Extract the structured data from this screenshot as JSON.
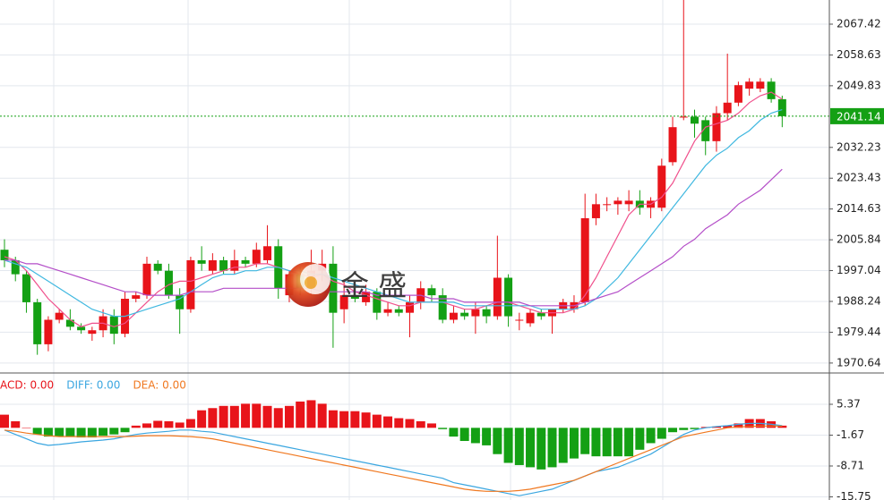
{
  "chart_data": {
    "type": "candlestick",
    "up_color": "#e8141a",
    "down_color": "#14a014",
    "ylim": [
      1968.31,
      2074.32
    ],
    "yticks": [
      2067.42,
      2058.63,
      2049.83,
      2032.23,
      2023.43,
      2014.63,
      2005.84,
      1997.04,
      1988.24,
      1979.44,
      1970.64
    ],
    "last_price": 2041.14,
    "last_price_color": "#14a014",
    "logo": "金 盛",
    "candles": {
      "open": [
        2003,
        2000,
        1996,
        1988,
        1976,
        1983,
        1983,
        1981,
        1979,
        1980,
        1984,
        1979,
        1989,
        1990,
        1999,
        1997,
        1990,
        1986,
        2000,
        1997,
        2000,
        1997,
        2000,
        1999,
        2000,
        2004,
        1990,
        1996,
        1992,
        1997,
        1999,
        1986,
        1990,
        1988,
        1991,
        1985,
        1986,
        1985,
        1988,
        1992,
        1990,
        1983,
        1985,
        1984,
        1986,
        1984,
        1995,
        1983,
        1982,
        1985,
        1984,
        1986,
        1986,
        1988,
        2012,
        2016,
        2016,
        2016,
        2017,
        2015,
        2015,
        2028,
        2041,
        2041,
        2040,
        2034,
        2042,
        2045,
        2049,
        2049,
        2051,
        2046
      ],
      "high": [
        2006,
        2001,
        1997,
        1989,
        1984,
        1986,
        1986,
        1982,
        1981,
        1986,
        1986,
        1991,
        1991,
        2001,
        2000,
        1999,
        1992,
        2001,
        2004,
        2002,
        2001,
        2003,
        2001,
        2005,
        2010,
        2006,
        1997,
        1998,
        2003,
        2003,
        2004,
        1994,
        1992,
        1993,
        1992,
        1988,
        1987,
        1990,
        1994,
        1993,
        1992,
        1987,
        1986,
        1988,
        1987,
        2007,
        1996,
        1985,
        1986,
        1986,
        1986,
        1989,
        1990,
        2019,
        2019,
        2018,
        2018,
        2020,
        2020,
        2018,
        2029,
        2041,
        2075,
        2043,
        2041,
        2044,
        2059,
        2051,
        2052,
        2052,
        2052,
        2047
      ],
      "low": [
        1998,
        1994,
        1985,
        1973,
        1974,
        1982,
        1980,
        1979,
        1977,
        1978,
        1976,
        1978,
        1988,
        1989,
        1996,
        1989,
        1979,
        1985,
        1997,
        1996,
        1996,
        1996,
        1998,
        1998,
        1999,
        1989,
        1988,
        1990,
        1990,
        1994,
        1975,
        1982,
        1988,
        1987,
        1983,
        1984,
        1984,
        1978,
        1986,
        1988,
        1982,
        1982,
        1983,
        1979,
        1982,
        1983,
        1981,
        1980,
        1981,
        1983,
        1979,
        1985,
        1985,
        1987,
        2010,
        2014,
        2013,
        2014,
        2013,
        2012,
        2014,
        2027,
        2040,
        2035,
        2030,
        2031,
        2040,
        2044,
        2047,
        2048,
        2045,
        2038
      ],
      "close": [
        2000,
        1996,
        1988,
        1976,
        1983,
        1985,
        1981,
        1980,
        1980,
        1984,
        1979,
        1989,
        1990,
        1999,
        1997,
        1990,
        1986,
        2000,
        1999,
        2000,
        1997,
        2000,
        1999,
        2003,
        2004,
        1992,
        1996,
        1992,
        1997,
        1999,
        1985,
        1990,
        1989,
        1991,
        1985,
        1986,
        1985,
        1988,
        1992,
        1990,
        1983,
        1985,
        1984,
        1986,
        1984,
        1995,
        1984,
        1983,
        1985,
        1984,
        1986,
        1988,
        1988,
        2012,
        2016,
        2016,
        2017,
        2017,
        2015,
        2017,
        2027,
        2038,
        2041,
        2039,
        2034,
        2042,
        2045,
        2050,
        2051,
        2051,
        2046,
        2041.14
      ]
    },
    "series": [
      {
        "color": "#f0508c",
        "values": [
          2001,
          2000,
          1997,
          1993,
          1989,
          1986,
          1983,
          1981,
          1982,
          1982,
          1981,
          1982,
          1985,
          1988,
          1991,
          1993,
          1994,
          1994,
          1995,
          1996,
          1997,
          1998,
          1998,
          1999,
          1999,
          1998,
          1997,
          1996,
          1995,
          1996,
          1994,
          1993,
          1991,
          1990,
          1989,
          1988,
          1987,
          1987,
          1988,
          1988,
          1988,
          1987,
          1986,
          1986,
          1987,
          1988,
          1988,
          1987,
          1986,
          1985,
          1985,
          1985,
          1986,
          1990,
          1995,
          2001,
          2007,
          2013,
          2016,
          2016,
          2018,
          2022,
          2028,
          2034,
          2038,
          2039,
          2040,
          2042,
          2045,
          2047,
          2048,
          2046
        ]
      },
      {
        "color": "#40b8e0",
        "values": [
          2000,
          1999,
          1998,
          1996,
          1994,
          1992,
          1990,
          1988,
          1986,
          1985,
          1984,
          1984,
          1985,
          1986,
          1987,
          1988,
          1989,
          1991,
          1993,
          1995,
          1996,
          1996,
          1997,
          1997,
          1998,
          1998,
          1997,
          1997,
          1996,
          1996,
          1995,
          1994,
          1993,
          1992,
          1991,
          1990,
          1989,
          1988,
          1988,
          1988,
          1988,
          1988,
          1987,
          1987,
          1987,
          1987,
          1987,
          1987,
          1987,
          1986,
          1986,
          1986,
          1986,
          1987,
          1989,
          1992,
          1995,
          1999,
          2003,
          2007,
          2011,
          2015,
          2019,
          2023,
          2027,
          2030,
          2032,
          2035,
          2037,
          2040,
          2042,
          2043
        ]
      },
      {
        "color": "#b44ec8",
        "values": [
          2000,
          2000,
          1999,
          1999,
          1998,
          1997,
          1996,
          1995,
          1994,
          1993,
          1992,
          1991,
          1991,
          1990,
          1990,
          1990,
          1990,
          1991,
          1991,
          1991,
          1992,
          1992,
          1992,
          1992,
          1992,
          1992,
          1992,
          1992,
          1992,
          1991,
          1991,
          1991,
          1991,
          1991,
          1990,
          1990,
          1990,
          1990,
          1990,
          1989,
          1989,
          1989,
          1988,
          1988,
          1988,
          1988,
          1988,
          1988,
          1987,
          1987,
          1987,
          1987,
          1987,
          1988,
          1989,
          1990,
          1991,
          1993,
          1995,
          1997,
          1999,
          2001,
          2004,
          2006,
          2009,
          2011,
          2013,
          2016,
          2018,
          2020,
          2023,
          2026
        ]
      }
    ],
    "macd": {
      "ylim": [
        -16.47,
        12.31
      ],
      "yticks": [
        5.37,
        -1.67,
        -8.71,
        -15.75
      ],
      "legend": [
        {
          "label": "ACD: 0.00",
          "color": "#e8141a"
        },
        {
          "label": "DIFF: 0.00",
          "color": "#3aa6e0"
        },
        {
          "label": "DEA: 0.00",
          "color": "#f07820"
        }
      ],
      "hist": [
        3,
        1.5,
        0,
        -1.5,
        -2,
        -2,
        -2,
        -2.2,
        -2.2,
        -1.8,
        -1.5,
        -1,
        0.5,
        1,
        1.6,
        1.5,
        1.2,
        2,
        4,
        4.5,
        5,
        5,
        5.5,
        5.5,
        5,
        4.5,
        5,
        6,
        6.3,
        5.5,
        4,
        3.8,
        3.8,
        3.5,
        3,
        2.6,
        2.2,
        2,
        1.5,
        1,
        -0.3,
        -2,
        -3,
        -3.5,
        -4,
        -6,
        -8,
        -8.5,
        -9,
        -9.5,
        -9,
        -8,
        -7,
        -6,
        -6.5,
        -6.5,
        -6.5,
        -6.5,
        -5,
        -3.5,
        -2.5,
        -1,
        -0.5,
        -0.3,
        0.2,
        0.3,
        0.5,
        1,
        2,
        2,
        1.5,
        0.5
      ],
      "diff": [
        -0.5,
        -1.5,
        -2.5,
        -3.5,
        -4,
        -3.8,
        -3.5,
        -3.2,
        -3,
        -2.8,
        -2.5,
        -2,
        -1.5,
        -1.2,
        -1,
        -0.8,
        -0.5,
        -0.5,
        -0.8,
        -1,
        -1.5,
        -2,
        -2.5,
        -3,
        -3.5,
        -4,
        -4.5,
        -5,
        -5.5,
        -6,
        -6.5,
        -7,
        -7.5,
        -8,
        -8.5,
        -9,
        -9.5,
        -10,
        -10.5,
        -11,
        -11.5,
        -12.5,
        -13,
        -13.5,
        -14,
        -14.5,
        -15,
        -15.5,
        -15,
        -14.5,
        -14,
        -13,
        -12,
        -11,
        -10,
        -9.5,
        -9,
        -8,
        -7,
        -6,
        -4.5,
        -3,
        -1.5,
        -0.5,
        0,
        0.3,
        0.5,
        0.8,
        1,
        1,
        0.8,
        0.5
      ],
      "dea": [
        -0.5,
        -0.8,
        -1.2,
        -1.5,
        -1.8,
        -2,
        -2,
        -2,
        -2,
        -2,
        -2,
        -2,
        -1.9,
        -1.8,
        -1.8,
        -1.8,
        -1.9,
        -2,
        -2.2,
        -2.5,
        -3,
        -3.5,
        -4,
        -4.5,
        -5,
        -5.5,
        -6,
        -6.5,
        -7,
        -7.5,
        -8,
        -8.5,
        -9,
        -9.5,
        -10,
        -10.5,
        -11,
        -11.5,
        -12,
        -12.5,
        -13,
        -13.5,
        -14,
        -14.3,
        -14.5,
        -14.5,
        -14.5,
        -14.3,
        -14,
        -13.5,
        -13,
        -12.5,
        -12,
        -11,
        -10,
        -9,
        -8,
        -7,
        -6,
        -5,
        -4,
        -3,
        -2,
        -1.5,
        -1,
        -0.5,
        0,
        0.2,
        0.3,
        0.4,
        0.4,
        0.4
      ]
    }
  }
}
